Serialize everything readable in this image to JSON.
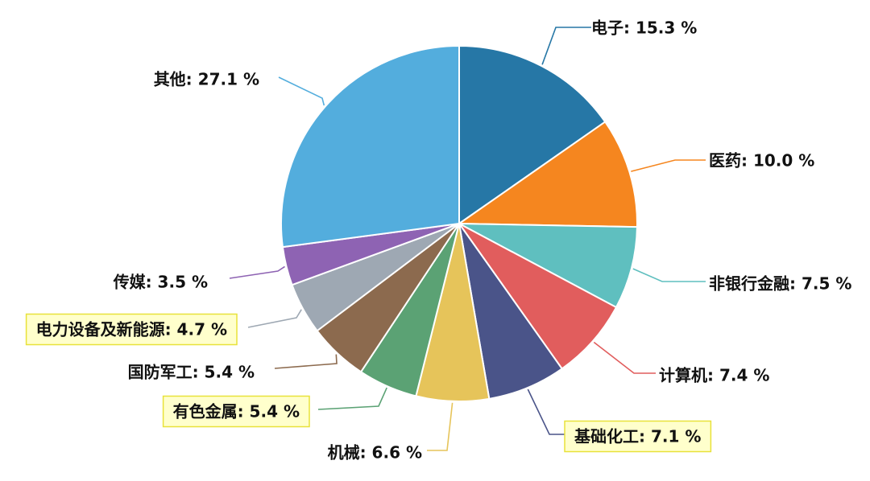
{
  "chart_data": {
    "type": "pie",
    "title": "",
    "label_unit": " %",
    "slices": [
      {
        "label": "电子",
        "value": 15.3,
        "color": "#2677a6",
        "highlight": false
      },
      {
        "label": "医药",
        "value": 10.0,
        "color": "#f5861f",
        "highlight": false
      },
      {
        "label": "非银行金融",
        "value": 7.5,
        "color": "#5fbfbf",
        "highlight": false
      },
      {
        "label": "计算机",
        "value": 7.4,
        "color": "#e15d5d",
        "highlight": false
      },
      {
        "label": "基础化工",
        "value": 7.1,
        "color": "#4a5489",
        "highlight": true
      },
      {
        "label": "机械",
        "value": 6.6,
        "color": "#e6c45a",
        "highlight": false
      },
      {
        "label": "有色金属",
        "value": 5.4,
        "color": "#5ba274",
        "highlight": true
      },
      {
        "label": "国防军工",
        "value": 5.4,
        "color": "#8c6a4e",
        "highlight": false
      },
      {
        "label": "电力设备及新能源",
        "value": 4.7,
        "color": "#9ea8b3",
        "highlight": true
      },
      {
        "label": "传媒",
        "value": 3.5,
        "color": "#8e63b3",
        "highlight": false
      },
      {
        "label": "其他",
        "value": 27.1,
        "color": "#53addd",
        "highlight": false
      }
    ]
  }
}
